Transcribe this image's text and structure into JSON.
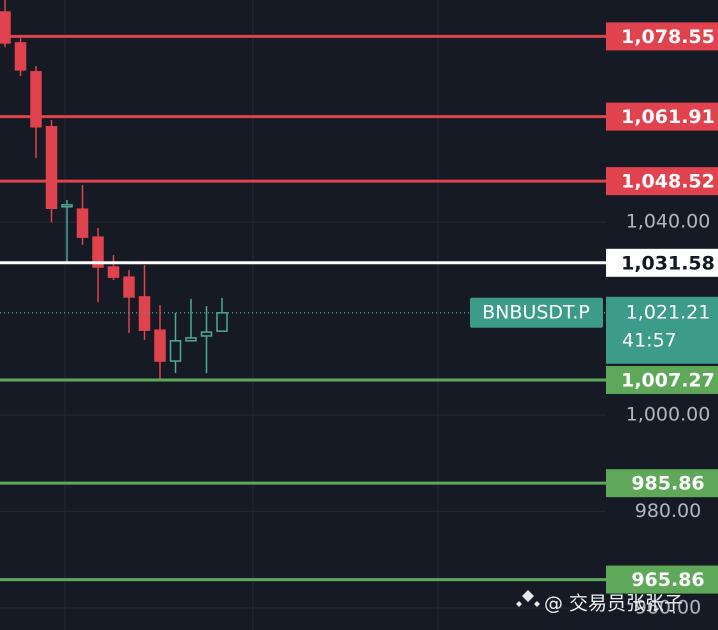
{
  "chart_data": {
    "type": "candlestick",
    "open": [
      1083.6,
      1077.2,
      1071.2,
      1059.8,
      1043.2,
      1042.7,
      1036.9,
      1030.7,
      1028.6,
      1024.5,
      1017.6,
      1011.2,
      1015.4,
      1016.4,
      1017.4
    ],
    "high": [
      1086.1,
      1078.2,
      1072.4,
      1061.2,
      1044.6,
      1047.7,
      1038.8,
      1033.2,
      1030.1,
      1031.1,
      1022.8,
      1021.2,
      1024.1,
      1022.6,
      1024.3
    ],
    "low": [
      1076.3,
      1070.3,
      1053.3,
      1040.0,
      1031.3,
      1035.3,
      1023.4,
      1028.0,
      1017.0,
      1015.6,
      1007.3,
      1008.7,
      1015.4,
      1008.7,
      1017.4
    ],
    "close": [
      1077.2,
      1071.6,
      1059.8,
      1042.9,
      1043.6,
      1036.9,
      1030.7,
      1028.6,
      1024.5,
      1017.6,
      1011.2,
      1015.4,
      1016.0,
      1017.2,
      1021.21
    ],
    "up_color": "#4fa89a",
    "down_color": "#e0434d",
    "ylim": [
      955.4,
      1086.1
    ],
    "yticks": [
      {
        "value": 1040,
        "label": "1,040.00"
      },
      {
        "value": 1000,
        "label": "1,000.00"
      },
      {
        "value": 980,
        "label": "980.00"
      },
      {
        "value": 960,
        "label": "960.00"
      }
    ],
    "levels": [
      {
        "value": 1078.55,
        "label": "1,078.55",
        "color": "#e0434d"
      },
      {
        "value": 1061.91,
        "label": "1,061.91",
        "color": "#e0434d"
      },
      {
        "value": 1048.52,
        "label": "1,048.52",
        "color": "#e0434d"
      },
      {
        "value": 1031.58,
        "label": "1,031.58",
        "color": "#ffffff"
      },
      {
        "value": 1007.27,
        "label": "1,007.27",
        "color": "#5fa85a"
      },
      {
        "value": 985.86,
        "label": "985.86",
        "color": "#5fa85a"
      },
      {
        "value": 965.86,
        "label": "965.86",
        "color": "#5fa85a"
      }
    ],
    "current_price": {
      "value": 1021.21,
      "label": "1,021.21",
      "symbol": "BNBUSDT.P",
      "countdown": "41:57",
      "color": "#3d9b8a"
    },
    "watermark": "@ 交易员张张子"
  }
}
